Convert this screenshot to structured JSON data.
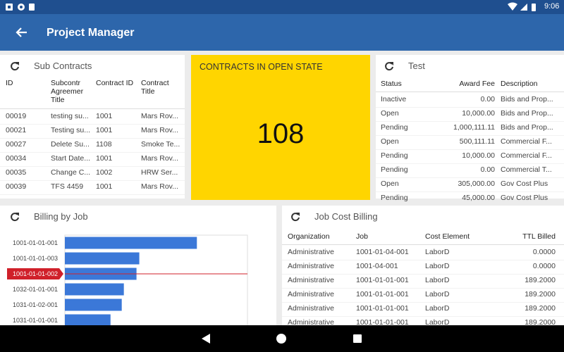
{
  "status_bar": {
    "time": "9:06"
  },
  "toolbar": {
    "title": "Project Manager"
  },
  "sub_contracts": {
    "title": "Sub Contracts",
    "columns": [
      "ID",
      "Subcontr Agreemer Title",
      "Contract ID",
      "Contract Title"
    ],
    "rows": [
      [
        "00019",
        "testing su...",
        "1001",
        "Mars Rov..."
      ],
      [
        "00021",
        "Testing su...",
        "1001",
        "Mars Rov..."
      ],
      [
        "00027",
        "Delete Su...",
        "1108",
        "Smoke Te..."
      ],
      [
        "00034",
        "Start Date...",
        "1001",
        "Mars Rov..."
      ],
      [
        "00035",
        "Change C...",
        "1002",
        "HRW Ser..."
      ],
      [
        "00039",
        "TFS 4459",
        "1001",
        "Mars Rov..."
      ]
    ]
  },
  "open_contracts": {
    "title": "CONTRACTS IN OPEN STATE",
    "value": 108
  },
  "test": {
    "title": "Test",
    "columns": [
      "Status",
      "Award Fee",
      "Description"
    ],
    "rows": [
      [
        "Inactive",
        "0.00",
        "Bids and Prop..."
      ],
      [
        "Open",
        "10,000.00",
        "Bids and Prop..."
      ],
      [
        "Pending",
        "1,000,111.11",
        "Bids and Prop..."
      ],
      [
        "Open",
        "500,111.11",
        "Commercial F..."
      ],
      [
        "Pending",
        "10,000.00",
        "Commercial F..."
      ],
      [
        "Pending",
        "0.00",
        "Commercial T..."
      ],
      [
        "Open",
        "305,000.00",
        "Gov Cost Plus"
      ],
      [
        "Pending",
        "45,000.00",
        "Gov Cost Plus"
      ]
    ]
  },
  "billing_by_job": {
    "title": "Billing by Job",
    "chart": {
      "type": "bar",
      "orientation": "horizontal",
      "color": "#3b78d8",
      "categories": [
        "1001-01-01-001",
        "1001-01-01-003",
        "1001-01-01-002",
        "1032-01-01-001",
        "1031-01-02-001",
        "1031-01-01-001"
      ],
      "values": [
        188,
        106,
        102,
        84,
        81,
        65
      ],
      "xlim": [
        0,
        260
      ],
      "selected": 2,
      "selected_color": "#d0202a"
    }
  },
  "job_cost_billing": {
    "title": "Job Cost Billing",
    "columns": [
      "Organization",
      "Job",
      "Cost Element",
      "TTL Billed"
    ],
    "rows": [
      [
        "Administrative",
        "1001-01-04-001",
        "LaborD",
        "0.0000"
      ],
      [
        "Administrative",
        "1001-04-001",
        "LaborD",
        "0.0000"
      ],
      [
        "Administrative",
        "1001-01-01-001",
        "LaborD",
        "189.2000"
      ],
      [
        "Administrative",
        "1001-01-01-001",
        "LaborD",
        "189.2000"
      ],
      [
        "Administrative",
        "1001-01-01-001",
        "LaborD",
        "189.2000"
      ],
      [
        "Administrative",
        "1001-01-01-001",
        "LaborD",
        "189.2000"
      ]
    ]
  }
}
